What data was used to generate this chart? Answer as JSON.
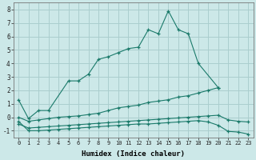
{
  "xlabel": "Humidex (Indice chaleur)",
  "series": [
    {
      "x": [
        0,
        1,
        2,
        3,
        5,
        6,
        7,
        8,
        9,
        10,
        11,
        12,
        13,
        14,
        15,
        16,
        17,
        18,
        20
      ],
      "y": [
        1.3,
        -0.1,
        0.5,
        0.5,
        2.7,
        2.7,
        3.2,
        4.3,
        4.5,
        4.8,
        5.1,
        5.2,
        6.5,
        6.2,
        7.9,
        6.5,
        6.2,
        4.0,
        2.2
      ]
    },
    {
      "x": [
        0,
        1,
        2,
        3,
        4,
        5,
        6,
        7,
        8,
        9,
        10,
        11,
        12,
        13,
        14,
        15,
        16,
        17,
        18,
        19,
        20
      ],
      "y": [
        0.0,
        -0.3,
        -0.2,
        -0.1,
        0.0,
        0.05,
        0.1,
        0.2,
        0.3,
        0.5,
        0.7,
        0.8,
        0.9,
        1.1,
        1.2,
        1.3,
        1.5,
        1.6,
        1.8,
        2.0,
        2.2
      ]
    },
    {
      "x": [
        0,
        1,
        2,
        3,
        4,
        5,
        6,
        7,
        8,
        9,
        10,
        11,
        12,
        13,
        14,
        15,
        16,
        17,
        18,
        19,
        20,
        21,
        22,
        23
      ],
      "y": [
        -0.5,
        -0.8,
        -0.75,
        -0.7,
        -0.65,
        -0.6,
        -0.55,
        -0.5,
        -0.45,
        -0.4,
        -0.35,
        -0.3,
        -0.25,
        -0.2,
        -0.15,
        -0.1,
        -0.05,
        0.0,
        0.05,
        0.1,
        0.15,
        -0.2,
        -0.3,
        -0.35
      ]
    },
    {
      "x": [
        0,
        1,
        2,
        3,
        4,
        5,
        6,
        7,
        8,
        9,
        10,
        11,
        12,
        13,
        14,
        15,
        16,
        17,
        18,
        19,
        20,
        21,
        22,
        23
      ],
      "y": [
        -0.3,
        -1.0,
        -1.0,
        -0.95,
        -0.9,
        -0.85,
        -0.8,
        -0.75,
        -0.7,
        -0.65,
        -0.6,
        -0.55,
        -0.5,
        -0.5,
        -0.45,
        -0.4,
        -0.35,
        -0.3,
        -0.25,
        -0.35,
        -0.6,
        -1.05,
        -1.1,
        -1.25
      ]
    }
  ],
  "color": "#1a7a6a",
  "bg_color": "#cce8e8",
  "grid_color": "#aacece",
  "ylim": [
    -1.5,
    8.5
  ],
  "xlim": [
    -0.5,
    23.5
  ],
  "yticks": [
    -1,
    0,
    1,
    2,
    3,
    4,
    5,
    6,
    7,
    8
  ],
  "xticks": [
    0,
    1,
    2,
    3,
    4,
    5,
    6,
    7,
    8,
    9,
    10,
    11,
    12,
    13,
    14,
    15,
    16,
    17,
    18,
    19,
    20,
    21,
    22,
    23
  ]
}
